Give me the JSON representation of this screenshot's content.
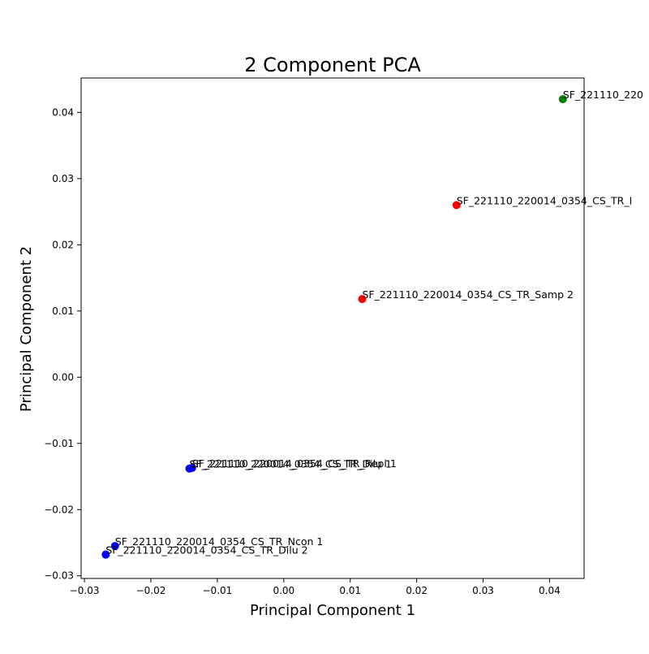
{
  "chart_data": {
    "type": "scatter",
    "title": "2 Component PCA",
    "xlabel": "Principal Component 1",
    "ylabel": "Principal Component 2",
    "xlim": [
      -0.0305,
      0.0452
    ],
    "ylim": [
      -0.0304,
      0.0452
    ],
    "xticks": [
      -0.03,
      -0.02,
      -0.01,
      0.0,
      0.01,
      0.02,
      0.03,
      0.04
    ],
    "xtick_labels": [
      "−0.03",
      "−0.02",
      "−0.01",
      "0.00",
      "0.01",
      "0.02",
      "0.03",
      "0.04"
    ],
    "yticks": [
      -0.03,
      -0.02,
      -0.01,
      0.0,
      0.01,
      0.02,
      0.03,
      0.04
    ],
    "ytick_labels": [
      "−0.03",
      "−0.02",
      "−0.01",
      "0.00",
      "0.01",
      "0.02",
      "0.03",
      "0.04"
    ],
    "grid": false,
    "points": [
      {
        "x": 0.042,
        "y": 0.042,
        "color": "#008000",
        "label": "SF_221110_220"
      },
      {
        "x": 0.026,
        "y": 0.026,
        "color": "#ff0000",
        "label": "SF_221110_220014_0354_CS_TR_I"
      },
      {
        "x": 0.0118,
        "y": 0.0118,
        "color": "#ff0000",
        "label": "SF_221110_220014_0354_CS_TR_Samp 2"
      },
      {
        "x": -0.0138,
        "y": -0.0137,
        "color": "#0000ff",
        "label": "SF_221110_220014_0354_CS_TR_Repl 1"
      },
      {
        "x": -0.0142,
        "y": -0.0138,
        "color": "#0000ff",
        "label": "SF_221110_220014_0354_CS_TR_Dilu 1"
      },
      {
        "x": -0.0254,
        "y": -0.0255,
        "color": "#0000ff",
        "label": "SF_221110_220014_0354_CS_TR_Ncon 1"
      },
      {
        "x": -0.0268,
        "y": -0.0268,
        "color": "#0000ff",
        "label": "SF_221110_220014_0354_CS_TR_Dilu 2"
      }
    ]
  }
}
